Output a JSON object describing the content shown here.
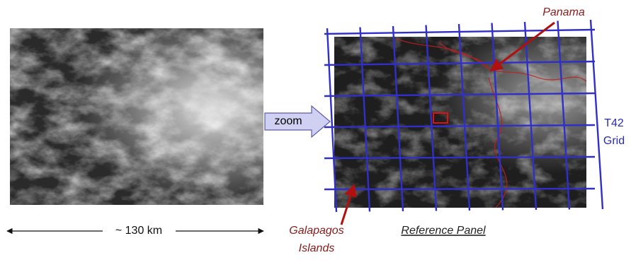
{
  "labels": {
    "panama": "Panama",
    "zoom": "zoom",
    "grid_name": "T42",
    "grid_word": "Grid",
    "scale": "~ 130 km",
    "galapagos_1": "Galapagos",
    "galapagos_2": "Islands",
    "reference_panel": "Reference Panel"
  }
}
